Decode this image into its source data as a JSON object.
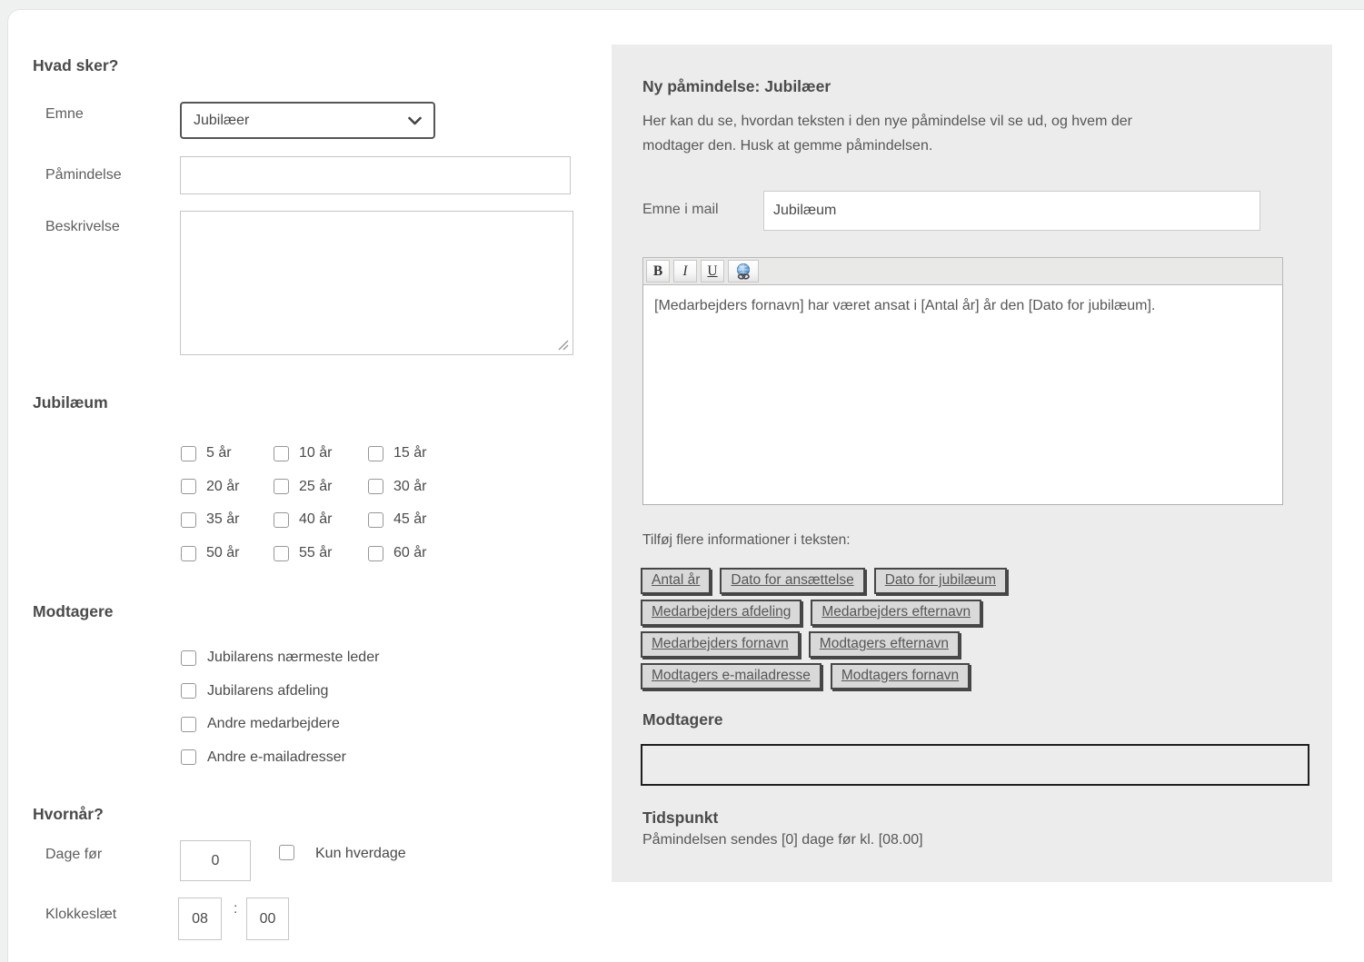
{
  "colors": {
    "panel_background": "#ececec",
    "page_background": "#eff0f0",
    "heading_text": "#4a4a4a",
    "body_text": "#575757",
    "token_button_bg": "#d9d9d9",
    "token_button_border": "#464646",
    "link_icon_blue": "#5b9bd5"
  },
  "form": {
    "what_section": {
      "title": "Hvad sker?",
      "emne": {
        "label": "Emne",
        "value": "Jubilæer"
      },
      "paamindelse": {
        "label": "Påmindelse",
        "value": ""
      },
      "beskrivelse": {
        "label": "Beskrivelse",
        "value": ""
      }
    },
    "jubilaeum_section": {
      "title": "Jubilæum",
      "options": [
        "5 år",
        "10 år",
        "15 år",
        "20 år",
        "25 år",
        "30 år",
        "35 år",
        "40 år",
        "45 år",
        "50 år",
        "55 år",
        "60 år"
      ]
    },
    "recipients_section": {
      "title": "Modtagere",
      "options": [
        "Jubilarens nærmeste leder",
        "Jubilarens afdeling",
        "Andre medarbejdere",
        "Andre e-mailadresser"
      ]
    },
    "when_section": {
      "title": "Hvornår?",
      "days_before": {
        "label": "Dage før",
        "value": "0"
      },
      "weekdays_only_label": "Kun hverdage",
      "time": {
        "label": "Klokkeslæt",
        "hour": "08",
        "separator": ":",
        "minute": "00"
      }
    }
  },
  "preview": {
    "title": "Ny påmindelse: Jubilæer",
    "description": "Her kan du se, hvordan teksten i den nye påmindelse vil se ud, og hvem der modtager den. Husk at gemme påmindelsen.",
    "mail_subject": {
      "label": "Emne i mail",
      "value": "Jubilæum"
    },
    "editor": {
      "toolbar": {
        "bold": "B",
        "italic": "I",
        "underline": "U"
      },
      "body_text": "[Medarbejders fornavn] har været ansat i [Antal år] år den [Dato for jubilæum]."
    },
    "tokens_label": "Tilføj flere informationer i teksten:",
    "token_rows": [
      [
        "Antal år",
        "Dato for ansættelse",
        "Dato for jubilæum"
      ],
      [
        "Medarbejders afdeling",
        "Medarbejders efternavn"
      ],
      [
        "Medarbejders fornavn",
        "Modtagers efternavn"
      ],
      [
        "Modtagers e-mailadresse",
        "Modtagers fornavn"
      ]
    ],
    "recipients_title": "Modtagere",
    "time_title": "Tidspunkt",
    "time_text": "Påmindelsen sendes [0] dage før kl. [08.00]"
  }
}
